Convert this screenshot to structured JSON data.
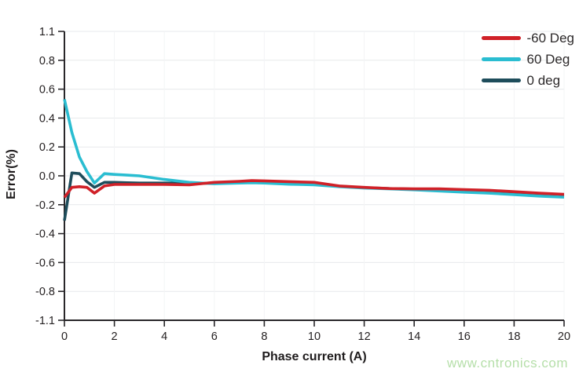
{
  "page": {
    "background": "#ffffff"
  },
  "watermark": {
    "text": "www.cntronics.com",
    "color": "#b5dfa9"
  },
  "chart_data": {
    "type": "line",
    "title": "",
    "xlabel": "Phase current (A)",
    "ylabel": "Error(%)",
    "xlim": [
      0,
      20
    ],
    "x_ticks": [
      0,
      2,
      4,
      6,
      8,
      10,
      12,
      14,
      16,
      18,
      20
    ],
    "y_tick_values": [
      1.1,
      0.8,
      0.6,
      0.4,
      0.2,
      0,
      -0.2,
      -0.4,
      -0.6,
      -0.8,
      -1.1
    ],
    "y_tick_labels": [
      "1.1",
      "0.8",
      "0.6",
      "0.4",
      "0.2",
      "0.0",
      "-0.2",
      "-0.4",
      "-0.6",
      "-0.8",
      "-1.1"
    ],
    "grid": true,
    "legend_position": "top-right",
    "axis_color": "#29272a",
    "grid_color": "#e7e9ec",
    "minor_grid_color": "#f3f4f6",
    "draw_order": [
      2,
      1,
      0
    ],
    "x": [
      0,
      0.3,
      0.6,
      0.9,
      1.2,
      1.6,
      2,
      2.5,
      3,
      4,
      5,
      6,
      7,
      7.5,
      8,
      9,
      10,
      11,
      12,
      13,
      14,
      15,
      16,
      17,
      18,
      19,
      20
    ],
    "series": [
      {
        "name": "-60 Deg",
        "color": "#d02128",
        "values": [
          -0.15,
          -0.08,
          -0.075,
          -0.08,
          -0.12,
          -0.07,
          -0.06,
          -0.06,
          -0.06,
          -0.06,
          -0.062,
          -0.045,
          -0.038,
          -0.033,
          -0.035,
          -0.04,
          -0.045,
          -0.07,
          -0.08,
          -0.088,
          -0.09,
          -0.09,
          -0.095,
          -0.1,
          -0.11,
          -0.12,
          -0.128
        ]
      },
      {
        "name": "60 Deg",
        "color": "#2abdd1",
        "values": [
          0.53,
          0.3,
          0.13,
          0.03,
          -0.05,
          0.015,
          0.01,
          0.005,
          0,
          -0.025,
          -0.045,
          -0.055,
          -0.05,
          -0.048,
          -0.05,
          -0.058,
          -0.062,
          -0.075,
          -0.085,
          -0.09,
          -0.097,
          -0.105,
          -0.113,
          -0.12,
          -0.13,
          -0.14,
          -0.148
        ]
      },
      {
        "name": "0 deg",
        "color": "#1e4d5b",
        "values": [
          -0.31,
          0.02,
          0.015,
          -0.04,
          -0.08,
          -0.045,
          -0.045,
          -0.048,
          -0.05,
          -0.05,
          -0.052,
          -0.05,
          -0.045,
          -0.045,
          -0.048,
          -0.055,
          -0.06,
          -0.072,
          -0.082,
          -0.088,
          -0.092,
          -0.097,
          -0.104,
          -0.113,
          -0.122,
          -0.13,
          -0.138
        ]
      }
    ]
  }
}
